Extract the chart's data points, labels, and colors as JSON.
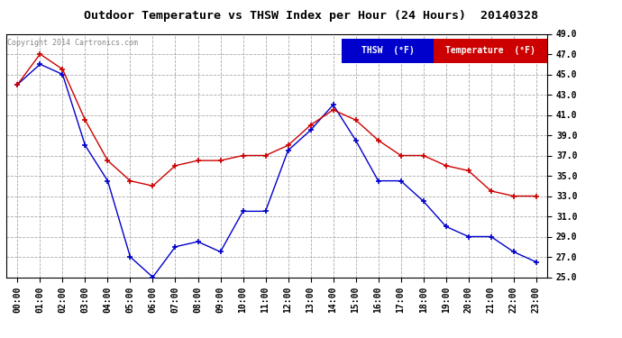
{
  "title": "Outdoor Temperature vs THSW Index per Hour (24 Hours)  20140328",
  "copyright": "Copyright 2014 Cartronics.com",
  "hours": [
    "00:00",
    "01:00",
    "02:00",
    "03:00",
    "04:00",
    "05:00",
    "06:00",
    "07:00",
    "08:00",
    "09:00",
    "10:00",
    "11:00",
    "12:00",
    "13:00",
    "14:00",
    "15:00",
    "16:00",
    "17:00",
    "18:00",
    "19:00",
    "20:00",
    "21:00",
    "22:00",
    "23:00"
  ],
  "thsw": [
    44.0,
    46.0,
    45.0,
    38.0,
    34.5,
    27.0,
    25.0,
    28.0,
    28.5,
    27.5,
    31.5,
    31.5,
    37.5,
    39.5,
    42.0,
    38.5,
    34.5,
    34.5,
    32.5,
    30.0,
    29.0,
    29.0,
    27.5,
    26.5
  ],
  "temperature": [
    44.0,
    47.0,
    45.5,
    40.5,
    36.5,
    34.5,
    34.0,
    36.0,
    36.5,
    36.5,
    37.0,
    37.0,
    38.0,
    40.0,
    41.5,
    40.5,
    38.5,
    37.0,
    37.0,
    36.0,
    35.5,
    33.5,
    33.0,
    33.0
  ],
  "thsw_color": "#0000cc",
  "temp_color": "#cc0000",
  "background_color": "#ffffff",
  "grid_color": "#aaaaaa",
  "ylim_min": 25.0,
  "ylim_max": 49.0,
  "yticks": [
    25.0,
    27.0,
    29.0,
    31.0,
    33.0,
    35.0,
    37.0,
    39.0,
    41.0,
    43.0,
    45.0,
    47.0,
    49.0
  ],
  "legend_thsw_bg": "#0000cc",
  "legend_temp_bg": "#cc0000",
  "legend_thsw_text": "THSW  (°F)",
  "legend_temp_text": "Temperature  (°F)"
}
